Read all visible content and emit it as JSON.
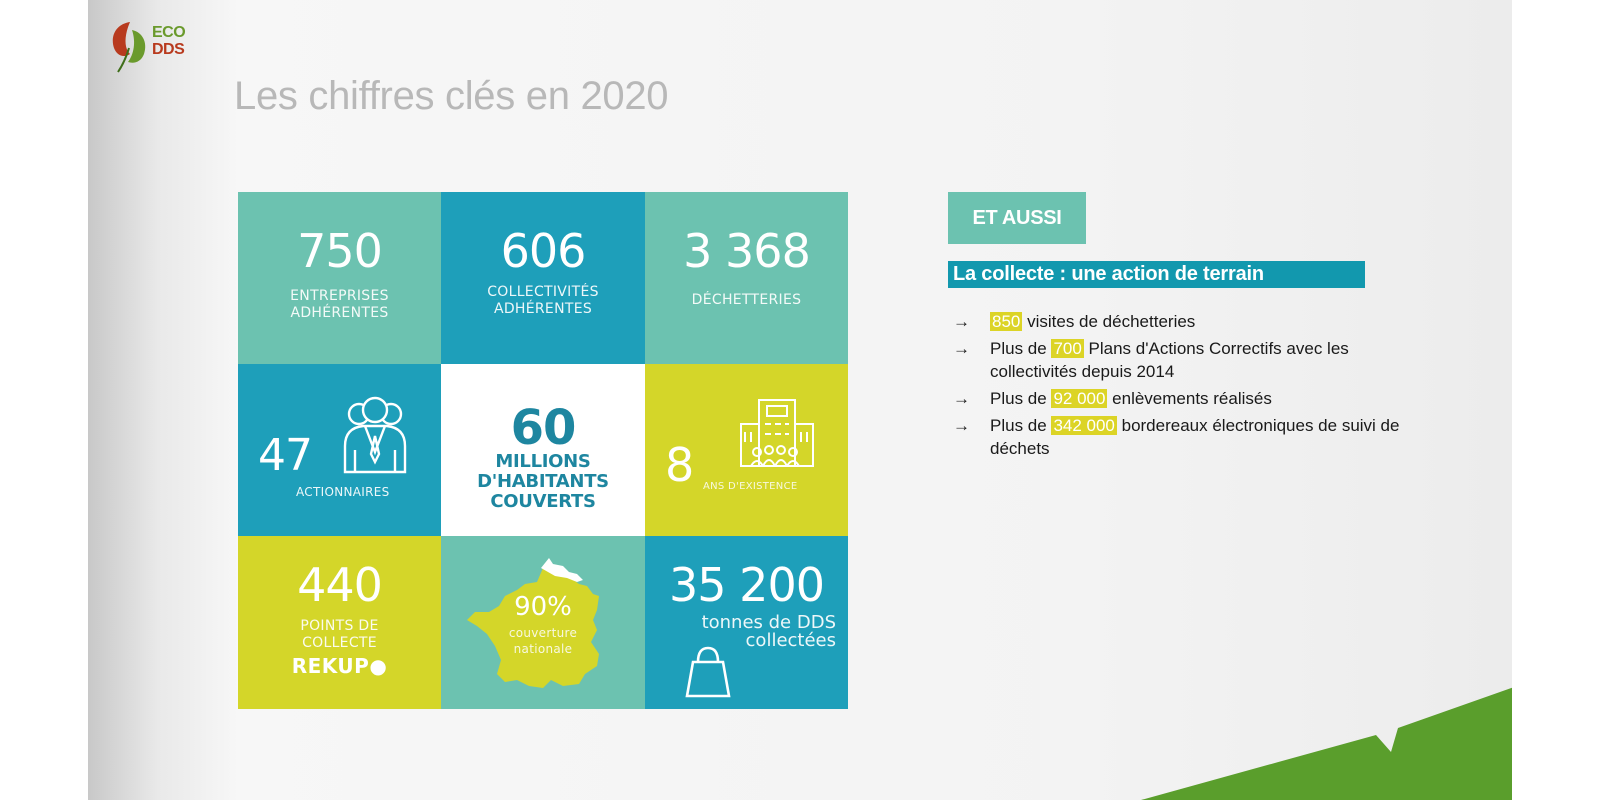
{
  "logo": {
    "line1": "ECO",
    "line2": "DDS"
  },
  "title": "Les chiffres clés en 2020",
  "tiles": {
    "entreprises": {
      "value": "750",
      "label": "ENTREPRISES\nADHÉRENTES"
    },
    "collectivites": {
      "value": "606",
      "label": "COLLECTIVITÉS\nADHÉRENTES"
    },
    "decheteries": {
      "value": "3 368",
      "label": "DÉCHETTERIES"
    },
    "actionnaires": {
      "value": "47",
      "label": "ACTIONNAIRES"
    },
    "habitants": {
      "value": "60",
      "label": "MILLIONS\nD'HABITANTS\nCOUVERTS"
    },
    "existence": {
      "value": "8",
      "label": "ANS D'EXISTENCE"
    },
    "points": {
      "value": "440",
      "label": "POINTS DE\nCOLLECTE",
      "brand": "REKUP●"
    },
    "couverture": {
      "value": "90%",
      "label": "couverture\nnationale"
    },
    "tonnes": {
      "value": "35 200",
      "label": "tonnes de DDS\ncollectées"
    }
  },
  "aside": {
    "badge": "ET AUSSI",
    "heading": "La collecte : une action de terrain",
    "arrow": "→",
    "items": [
      {
        "pre": "",
        "highlight": "850",
        "post": " visites de déchetteries"
      },
      {
        "pre": "Plus de ",
        "highlight": "700",
        "post": " Plans d'Actions Correctifs avec les collectivités depuis 2014"
      },
      {
        "pre": "Plus de ",
        "highlight": "92 000",
        "post": " enlèvements réalisés"
      },
      {
        "pre": "Plus de ",
        "highlight": "342 000",
        "post": " bordereaux électroniques de suivi de déchets"
      }
    ]
  },
  "colors": {
    "teal": "#6cc2b0",
    "blue": "#1e9fba",
    "lime": "#d4d629",
    "green": "#5a9e2c",
    "title_grey": "#b8b8b8"
  }
}
